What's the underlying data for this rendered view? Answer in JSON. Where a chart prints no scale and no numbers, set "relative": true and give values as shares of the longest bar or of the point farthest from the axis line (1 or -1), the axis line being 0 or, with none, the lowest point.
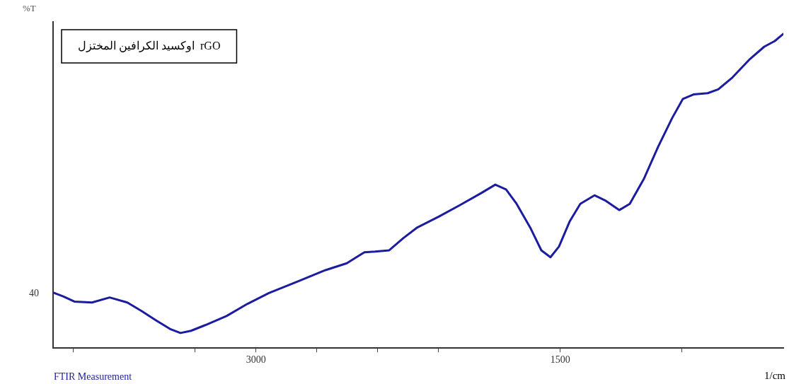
{
  "chart_data": {
    "type": "line",
    "title": "اوكسيد الكرافين المختزل  rGO",
    "ylabel": "%T",
    "xlabel": "1/cm",
    "relative": true,
    "grid": false,
    "legend": false,
    "marker": "none",
    "line_style": "solid",
    "xlim": [
      4000,
      400
    ],
    "xticks": [
      {
        "value": 3900,
        "label": null
      },
      {
        "value": 3300,
        "label": null
      },
      3000,
      {
        "value": 2700,
        "label": null
      },
      {
        "value": 2400,
        "label": null
      },
      {
        "value": 2100,
        "label": null
      },
      1500,
      {
        "value": 900,
        "label": null
      }
    ],
    "annotations": [
      "FTIR Measurement",
      "40"
    ],
    "x": [
      4000,
      3948,
      3895,
      3808,
      3721,
      3634,
      3564,
      3494,
      3424,
      3372,
      3320,
      3250,
      3145,
      3041,
      2936,
      2797,
      2657,
      2552,
      2465,
      2413,
      2343,
      2273,
      2204,
      2099,
      1994,
      1890,
      1820,
      1767,
      1715,
      1645,
      1593,
      1548,
      1506,
      1454,
      1401,
      1331,
      1279,
      1209,
      1157,
      1087,
      1017,
      948,
      895,
      843,
      773,
      721,
      651,
      564,
      494,
      442,
      400
    ],
    "series": [
      {
        "color": "#1c1ca0",
        "values": [
          0.177,
          0.164,
          0.148,
          0.145,
          0.161,
          0.145,
          0.118,
          0.089,
          0.061,
          0.048,
          0.055,
          0.073,
          0.102,
          0.141,
          0.175,
          0.211,
          0.248,
          0.27,
          0.305,
          0.307,
          0.311,
          0.35,
          0.384,
          0.418,
          0.455,
          0.493,
          0.52,
          0.505,
          0.459,
          0.38,
          0.311,
          0.289,
          0.323,
          0.402,
          0.459,
          0.486,
          0.47,
          0.439,
          0.459,
          0.539,
          0.641,
          0.732,
          0.793,
          0.807,
          0.811,
          0.823,
          0.861,
          0.92,
          0.959,
          0.977,
          1
        ]
      }
    ]
  }
}
